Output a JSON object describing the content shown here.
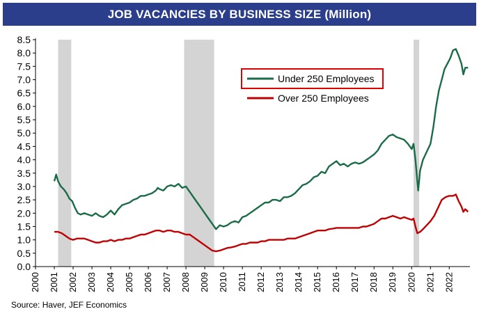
{
  "chart_data": {
    "type": "line",
    "title": "JOB VACANCIES BY BUSINESS SIZE (Million)",
    "xlabel": "",
    "ylabel": "",
    "ylim": [
      0,
      8.5
    ],
    "yticks": [
      "0.0",
      "0.5",
      "1.0",
      "1.5",
      "2.0",
      "2.5",
      "3.0",
      "3.5",
      "4.0",
      "4.5",
      "5.0",
      "5.5",
      "6.0",
      "6.5",
      "7.0",
      "7.5",
      "8.0",
      "8.5"
    ],
    "xlim": [
      2000,
      2023.1
    ],
    "xticks": [
      "2000",
      "2001",
      "2002",
      "2003",
      "2004",
      "2005",
      "2006",
      "2007",
      "2008",
      "2009",
      "2010",
      "2011",
      "2012",
      "2013",
      "2014",
      "2015",
      "2016",
      "2017",
      "2018",
      "2019",
      "2020",
      "2021",
      "2022"
    ],
    "grid": false,
    "legend_position": "top-center",
    "recessions": [
      [
        2001.2,
        2001.9
      ],
      [
        2007.9,
        2009.5
      ],
      [
        2020.1,
        2020.4
      ]
    ],
    "series": [
      {
        "name": "Under 250 Employees",
        "color": "#1a6b47",
        "highlighted": true,
        "points": [
          [
            2001.0,
            3.2
          ],
          [
            2001.1,
            3.45
          ],
          [
            2001.2,
            3.2
          ],
          [
            2001.35,
            3.0
          ],
          [
            2001.5,
            2.9
          ],
          [
            2001.65,
            2.75
          ],
          [
            2001.8,
            2.55
          ],
          [
            2001.95,
            2.45
          ],
          [
            2002.1,
            2.2
          ],
          [
            2002.25,
            2.0
          ],
          [
            2002.4,
            1.95
          ],
          [
            2002.6,
            2.0
          ],
          [
            2002.8,
            1.95
          ],
          [
            2003.0,
            1.9
          ],
          [
            2003.2,
            2.0
          ],
          [
            2003.4,
            1.9
          ],
          [
            2003.6,
            1.85
          ],
          [
            2003.8,
            1.95
          ],
          [
            2004.0,
            2.1
          ],
          [
            2004.2,
            1.95
          ],
          [
            2004.4,
            2.15
          ],
          [
            2004.6,
            2.3
          ],
          [
            2004.8,
            2.35
          ],
          [
            2005.0,
            2.4
          ],
          [
            2005.2,
            2.5
          ],
          [
            2005.4,
            2.55
          ],
          [
            2005.6,
            2.65
          ],
          [
            2005.8,
            2.65
          ],
          [
            2006.0,
            2.7
          ],
          [
            2006.2,
            2.75
          ],
          [
            2006.4,
            2.85
          ],
          [
            2006.5,
            2.95
          ],
          [
            2006.6,
            2.9
          ],
          [
            2006.8,
            2.85
          ],
          [
            2007.0,
            3.0
          ],
          [
            2007.2,
            3.05
          ],
          [
            2007.4,
            3.0
          ],
          [
            2007.6,
            3.1
          ],
          [
            2007.8,
            2.95
          ],
          [
            2008.0,
            3.0
          ],
          [
            2008.2,
            2.8
          ],
          [
            2008.4,
            2.6
          ],
          [
            2008.6,
            2.4
          ],
          [
            2008.8,
            2.2
          ],
          [
            2009.0,
            2.0
          ],
          [
            2009.2,
            1.8
          ],
          [
            2009.4,
            1.6
          ],
          [
            2009.6,
            1.4
          ],
          [
            2009.8,
            1.55
          ],
          [
            2010.0,
            1.5
          ],
          [
            2010.2,
            1.55
          ],
          [
            2010.4,
            1.65
          ],
          [
            2010.6,
            1.7
          ],
          [
            2010.8,
            1.65
          ],
          [
            2011.0,
            1.85
          ],
          [
            2011.2,
            1.9
          ],
          [
            2011.4,
            2.0
          ],
          [
            2011.6,
            2.1
          ],
          [
            2011.8,
            2.2
          ],
          [
            2012.0,
            2.3
          ],
          [
            2012.2,
            2.4
          ],
          [
            2012.4,
            2.4
          ],
          [
            2012.6,
            2.5
          ],
          [
            2012.8,
            2.5
          ],
          [
            2013.0,
            2.45
          ],
          [
            2013.2,
            2.6
          ],
          [
            2013.4,
            2.6
          ],
          [
            2013.6,
            2.65
          ],
          [
            2013.8,
            2.75
          ],
          [
            2014.0,
            2.9
          ],
          [
            2014.2,
            3.05
          ],
          [
            2014.4,
            3.1
          ],
          [
            2014.6,
            3.2
          ],
          [
            2014.8,
            3.35
          ],
          [
            2015.0,
            3.4
          ],
          [
            2015.2,
            3.55
          ],
          [
            2015.4,
            3.5
          ],
          [
            2015.6,
            3.75
          ],
          [
            2015.8,
            3.85
          ],
          [
            2016.0,
            3.95
          ],
          [
            2016.2,
            3.8
          ],
          [
            2016.4,
            3.85
          ],
          [
            2016.6,
            3.75
          ],
          [
            2016.8,
            3.85
          ],
          [
            2017.0,
            3.9
          ],
          [
            2017.2,
            3.85
          ],
          [
            2017.4,
            3.9
          ],
          [
            2017.6,
            4.0
          ],
          [
            2017.8,
            4.1
          ],
          [
            2018.0,
            4.2
          ],
          [
            2018.2,
            4.35
          ],
          [
            2018.4,
            4.6
          ],
          [
            2018.6,
            4.75
          ],
          [
            2018.8,
            4.9
          ],
          [
            2019.0,
            4.95
          ],
          [
            2019.2,
            4.85
          ],
          [
            2019.4,
            4.8
          ],
          [
            2019.6,
            4.75
          ],
          [
            2019.8,
            4.6
          ],
          [
            2020.0,
            4.4
          ],
          [
            2020.1,
            4.6
          ],
          [
            2020.2,
            4.0
          ],
          [
            2020.3,
            3.2
          ],
          [
            2020.35,
            2.85
          ],
          [
            2020.45,
            3.6
          ],
          [
            2020.6,
            4.0
          ],
          [
            2020.8,
            4.3
          ],
          [
            2021.0,
            4.6
          ],
          [
            2021.15,
            5.2
          ],
          [
            2021.3,
            6.0
          ],
          [
            2021.45,
            6.6
          ],
          [
            2021.6,
            7.0
          ],
          [
            2021.75,
            7.4
          ],
          [
            2021.9,
            7.6
          ],
          [
            2022.05,
            7.8
          ],
          [
            2022.2,
            8.1
          ],
          [
            2022.35,
            8.15
          ],
          [
            2022.5,
            7.9
          ],
          [
            2022.65,
            7.6
          ],
          [
            2022.75,
            7.2
          ],
          [
            2022.85,
            7.45
          ],
          [
            2023.0,
            7.45
          ]
        ]
      },
      {
        "name": "Over 250 Employees",
        "color": "#c00000",
        "highlighted": false,
        "points": [
          [
            2001.0,
            1.3
          ],
          [
            2001.2,
            1.3
          ],
          [
            2001.4,
            1.25
          ],
          [
            2001.6,
            1.15
          ],
          [
            2001.8,
            1.05
          ],
          [
            2002.0,
            1.0
          ],
          [
            2002.2,
            1.05
          ],
          [
            2002.4,
            1.05
          ],
          [
            2002.6,
            1.05
          ],
          [
            2002.8,
            1.0
          ],
          [
            2003.0,
            0.95
          ],
          [
            2003.2,
            0.9
          ],
          [
            2003.4,
            0.9
          ],
          [
            2003.6,
            0.95
          ],
          [
            2003.8,
            0.95
          ],
          [
            2004.0,
            1.0
          ],
          [
            2004.2,
            0.95
          ],
          [
            2004.4,
            1.0
          ],
          [
            2004.6,
            1.0
          ],
          [
            2004.8,
            1.05
          ],
          [
            2005.0,
            1.05
          ],
          [
            2005.2,
            1.1
          ],
          [
            2005.4,
            1.15
          ],
          [
            2005.6,
            1.2
          ],
          [
            2005.8,
            1.2
          ],
          [
            2006.0,
            1.25
          ],
          [
            2006.2,
            1.3
          ],
          [
            2006.4,
            1.35
          ],
          [
            2006.6,
            1.35
          ],
          [
            2006.8,
            1.3
          ],
          [
            2007.0,
            1.35
          ],
          [
            2007.2,
            1.35
          ],
          [
            2007.4,
            1.3
          ],
          [
            2007.6,
            1.3
          ],
          [
            2007.8,
            1.25
          ],
          [
            2008.0,
            1.2
          ],
          [
            2008.2,
            1.2
          ],
          [
            2008.4,
            1.1
          ],
          [
            2008.6,
            1.0
          ],
          [
            2008.8,
            0.9
          ],
          [
            2009.0,
            0.8
          ],
          [
            2009.2,
            0.7
          ],
          [
            2009.4,
            0.6
          ],
          [
            2009.6,
            0.57
          ],
          [
            2009.8,
            0.6
          ],
          [
            2010.0,
            0.65
          ],
          [
            2010.2,
            0.7
          ],
          [
            2010.4,
            0.72
          ],
          [
            2010.6,
            0.75
          ],
          [
            2010.8,
            0.8
          ],
          [
            2011.0,
            0.85
          ],
          [
            2011.2,
            0.85
          ],
          [
            2011.4,
            0.9
          ],
          [
            2011.6,
            0.9
          ],
          [
            2011.8,
            0.9
          ],
          [
            2012.0,
            0.95
          ],
          [
            2012.2,
            0.95
          ],
          [
            2012.4,
            1.0
          ],
          [
            2012.6,
            1.0
          ],
          [
            2012.8,
            1.0
          ],
          [
            2013.0,
            1.0
          ],
          [
            2013.2,
            1.0
          ],
          [
            2013.4,
            1.05
          ],
          [
            2013.6,
            1.05
          ],
          [
            2013.8,
            1.05
          ],
          [
            2014.0,
            1.1
          ],
          [
            2014.2,
            1.15
          ],
          [
            2014.4,
            1.2
          ],
          [
            2014.6,
            1.25
          ],
          [
            2014.8,
            1.3
          ],
          [
            2015.0,
            1.35
          ],
          [
            2015.2,
            1.35
          ],
          [
            2015.4,
            1.35
          ],
          [
            2015.6,
            1.4
          ],
          [
            2015.8,
            1.42
          ],
          [
            2016.0,
            1.45
          ],
          [
            2016.2,
            1.45
          ],
          [
            2016.4,
            1.45
          ],
          [
            2016.6,
            1.45
          ],
          [
            2016.8,
            1.45
          ],
          [
            2017.0,
            1.45
          ],
          [
            2017.2,
            1.45
          ],
          [
            2017.4,
            1.5
          ],
          [
            2017.6,
            1.5
          ],
          [
            2017.8,
            1.55
          ],
          [
            2018.0,
            1.6
          ],
          [
            2018.2,
            1.7
          ],
          [
            2018.4,
            1.8
          ],
          [
            2018.6,
            1.8
          ],
          [
            2018.8,
            1.85
          ],
          [
            2019.0,
            1.9
          ],
          [
            2019.2,
            1.85
          ],
          [
            2019.4,
            1.8
          ],
          [
            2019.6,
            1.85
          ],
          [
            2019.8,
            1.8
          ],
          [
            2020.0,
            1.75
          ],
          [
            2020.1,
            1.8
          ],
          [
            2020.2,
            1.5
          ],
          [
            2020.3,
            1.25
          ],
          [
            2020.45,
            1.3
          ],
          [
            2020.6,
            1.4
          ],
          [
            2020.8,
            1.55
          ],
          [
            2021.0,
            1.7
          ],
          [
            2021.2,
            1.9
          ],
          [
            2021.4,
            2.2
          ],
          [
            2021.6,
            2.5
          ],
          [
            2021.8,
            2.6
          ],
          [
            2022.0,
            2.65
          ],
          [
            2022.2,
            2.65
          ],
          [
            2022.35,
            2.7
          ],
          [
            2022.5,
            2.45
          ],
          [
            2022.65,
            2.25
          ],
          [
            2022.75,
            2.05
          ],
          [
            2022.85,
            2.15
          ],
          [
            2023.0,
            2.05
          ]
        ]
      }
    ]
  },
  "source": "Source:  Haver, JEF Economics"
}
